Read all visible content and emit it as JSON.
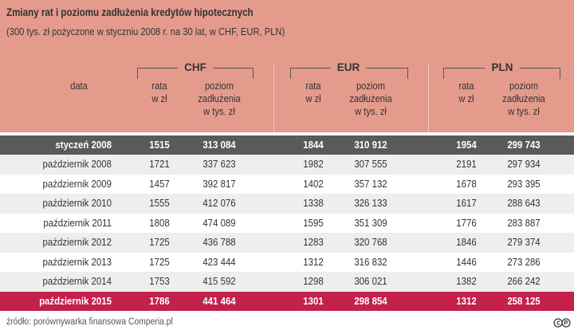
{
  "title": "Zmiany rat i poziomu zadłużenia kredytów hipotecznych",
  "subtitle": "(300 tys. zł pożyczone w styczniu 2008 r. na 30 lat, w CHF, EUR, PLN)",
  "source": "źródło: porównywarka finansowa Comperia.pl",
  "colors": {
    "header": "#e59b8c",
    "highlight_first": "#5a5a5a",
    "highlight_last": "#c3204b",
    "stripe": "#eeeeee"
  },
  "chart_data": {
    "type": "table",
    "row_header": "data",
    "currencies": [
      "CHF",
      "EUR",
      "PLN"
    ],
    "subcolumns": [
      {
        "lines": [
          "rata",
          "w zł"
        ]
      },
      {
        "lines": [
          "poziom",
          "zadłużenia",
          "w tys. zł"
        ]
      }
    ],
    "rows": [
      {
        "date": "styczeń 2008",
        "values": [
          "1515",
          "313 084",
          "1844",
          "310 912",
          "1954",
          "299 743"
        ],
        "highlight": "dark"
      },
      {
        "date": "październik 2008",
        "values": [
          "1721",
          "337 623",
          "1982",
          "307 555",
          "2191",
          "297 934"
        ]
      },
      {
        "date": "październik 2009",
        "values": [
          "1457",
          "392 817",
          "1402",
          "357 132",
          "1678",
          "293 395"
        ]
      },
      {
        "date": "październik 2010",
        "values": [
          "1555",
          "412 076",
          "1338",
          "326 133",
          "1617",
          "288 643"
        ]
      },
      {
        "date": "październik 2011",
        "values": [
          "1808",
          "474 089",
          "1595",
          "351 309",
          "1776",
          "283 887"
        ]
      },
      {
        "date": "październik 2012",
        "values": [
          "1725",
          "436 788",
          "1283",
          "320 768",
          "1846",
          "279 374"
        ]
      },
      {
        "date": "październik 2013",
        "values": [
          "1725",
          "423 444",
          "1312",
          "316 832",
          "1446",
          "273 286"
        ]
      },
      {
        "date": "październik 2014",
        "values": [
          "1753",
          "415 592",
          "1298",
          "306 021",
          "1382",
          "266 242"
        ]
      },
      {
        "date": "październik 2015",
        "values": [
          "1786",
          "441 464",
          "1301",
          "298 854",
          "1312",
          "258 125"
        ],
        "highlight": "red"
      }
    ]
  }
}
